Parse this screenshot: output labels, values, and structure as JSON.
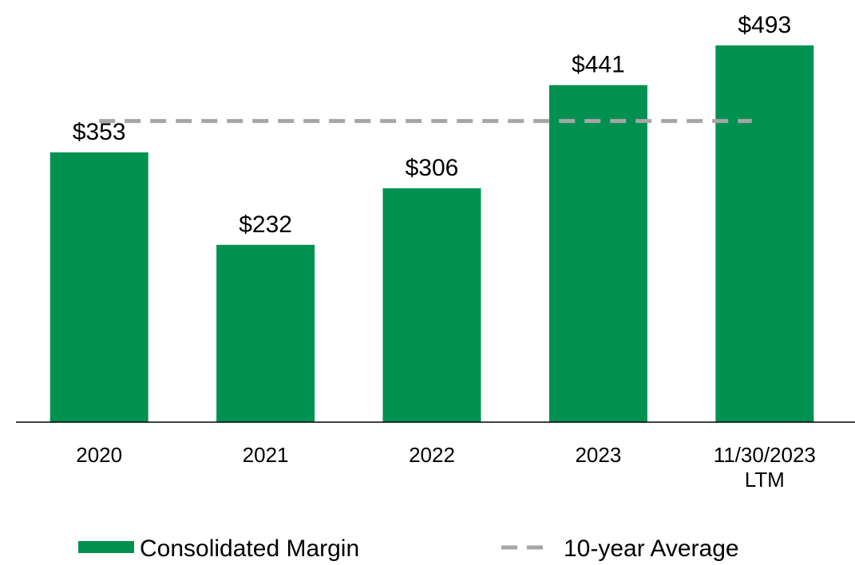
{
  "chart_data": {
    "type": "bar",
    "categories": [
      "2020",
      "2021",
      "2022",
      "2023",
      "11/30/2023\nLTM"
    ],
    "series": [
      {
        "name": "Consolidated Margin",
        "color": "#009150",
        "values": [
          353,
          232,
          306,
          441,
          493
        ],
        "value_labels": [
          "$353",
          "$232",
          "$306",
          "$441",
          "$493"
        ]
      }
    ],
    "average": {
      "name": "10-year Average",
      "value": 394,
      "color": "#a6a6a6"
    },
    "ylim": [
      0,
      520
    ]
  }
}
